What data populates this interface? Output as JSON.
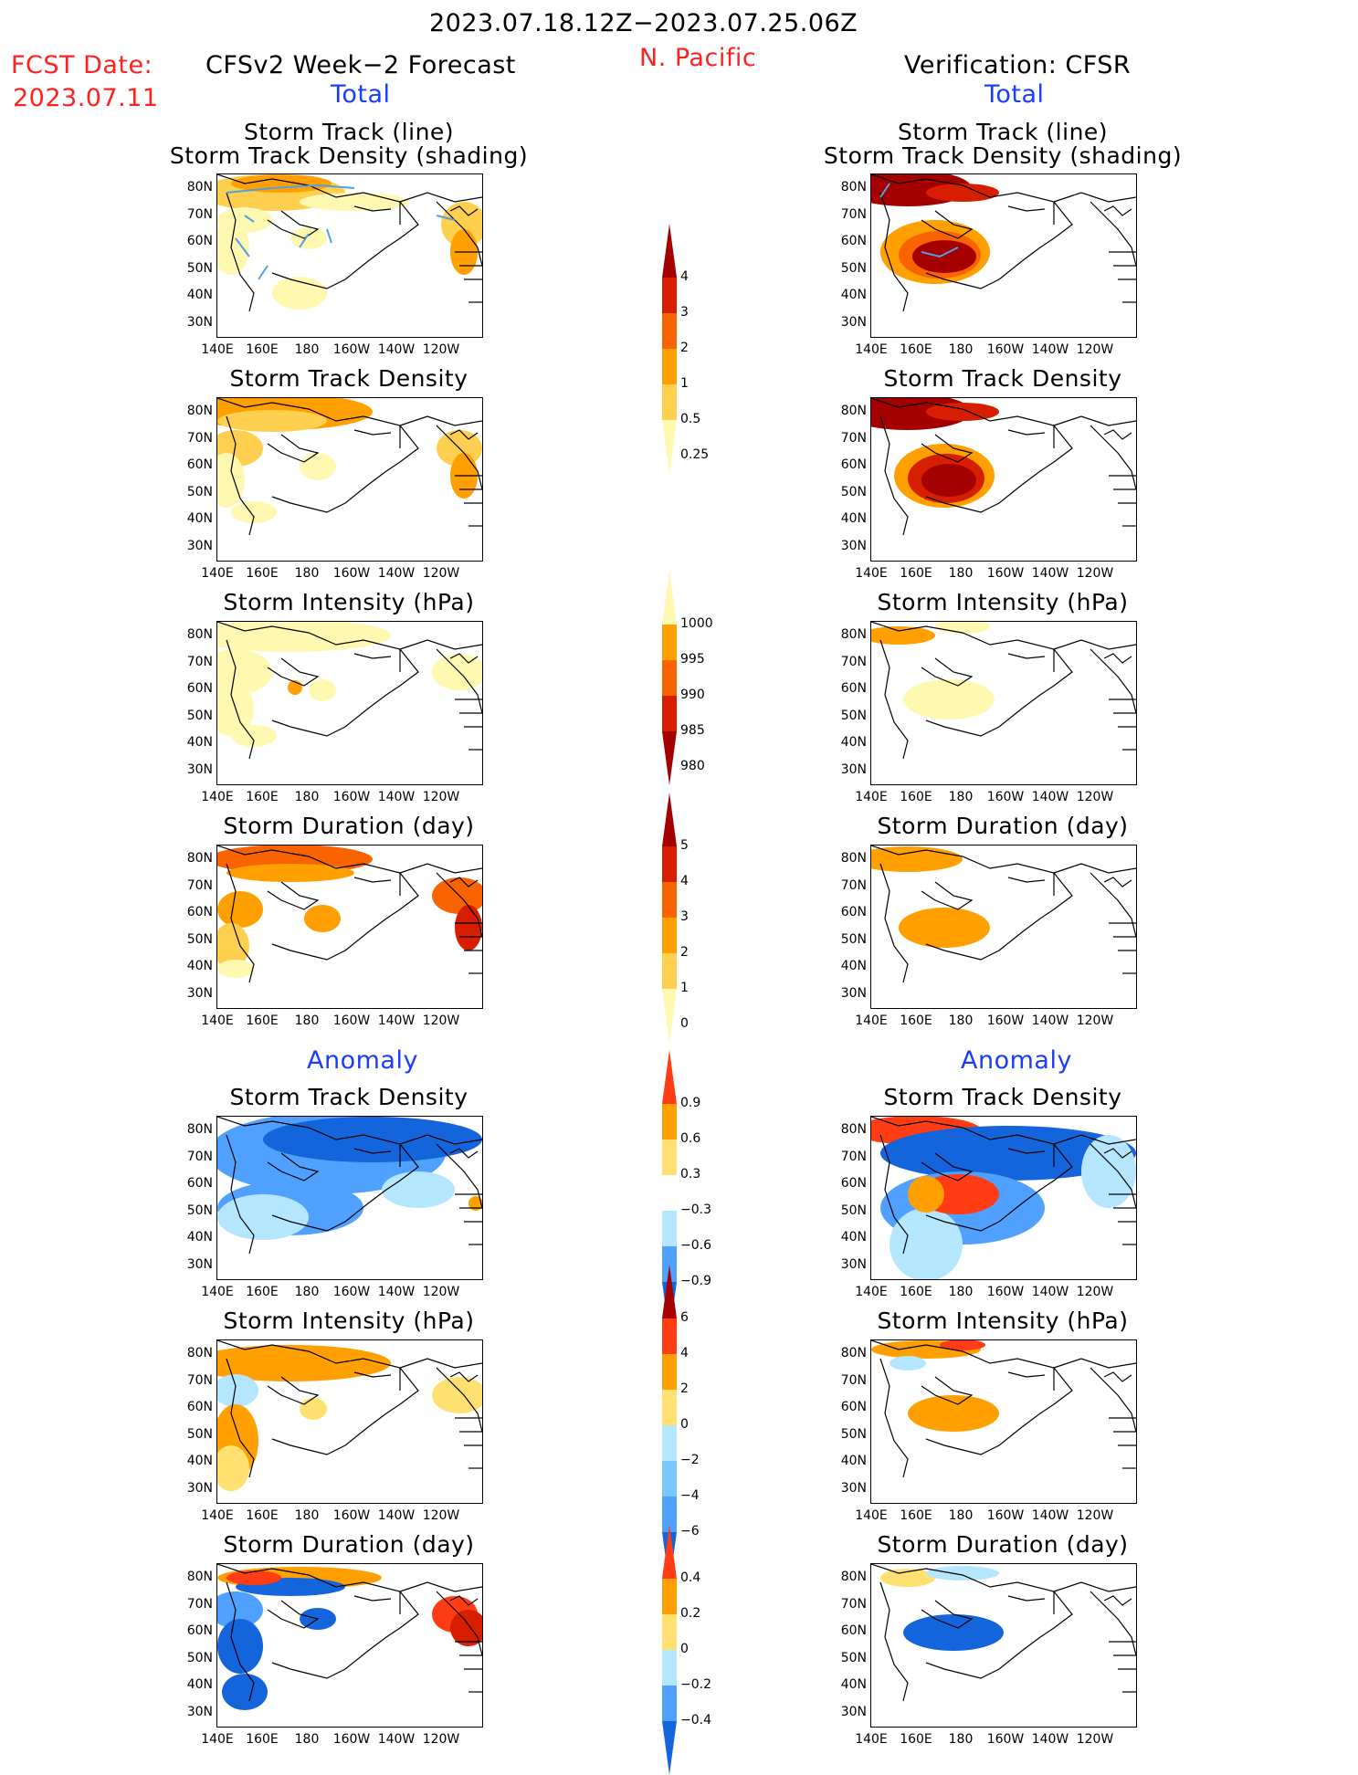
{
  "header": {
    "date_range": "2023.07.18.12Z−2023.07.25.06Z",
    "fcst_label": "FCST Date:",
    "fcst_date": "2023.07.11",
    "left_title": "CFSv2 Week−2 Forecast",
    "region": "N. Pacific",
    "right_title": "Verification: CFSR",
    "total_label": "Total",
    "anomaly_label": "Anomaly"
  },
  "panel_titles": {
    "track_line_1": "Storm Track (line)",
    "track_line_2": "Storm Track Density (shading)",
    "density": "Storm Track Density",
    "intensity": "Storm Intensity (hPa)",
    "duration": "Storm Duration (day)"
  },
  "axes": {
    "lat_labels": [
      "80N",
      "70N",
      "60N",
      "50N",
      "40N",
      "30N"
    ],
    "lon_labels": [
      "140E",
      "160E",
      "180",
      "160W",
      "140W",
      "120W"
    ]
  },
  "colorbars": {
    "density_total": {
      "labels": [
        "4",
        "3",
        "2",
        "1",
        "0.5",
        "0.25"
      ],
      "colors": [
        "#a50000",
        "#d81e00",
        "#fa6400",
        "#ffa000",
        "#ffd050",
        "#fff8b0"
      ]
    },
    "intensity_total": {
      "labels": [
        "1000",
        "995",
        "990",
        "985",
        "980"
      ],
      "colors": [
        "#fff8b0",
        "#ffa000",
        "#fa6400",
        "#d81e00",
        "#a50000"
      ]
    },
    "duration_total": {
      "labels": [
        "5",
        "4",
        "3",
        "2",
        "1",
        "0"
      ],
      "colors": [
        "#a50000",
        "#d81e00",
        "#fa6400",
        "#ffa000",
        "#ffd050",
        "#fff8b0"
      ]
    },
    "density_anom": {
      "labels": [
        "0.9",
        "0.6",
        "0.3",
        "−0.3",
        "−0.6",
        "−0.9"
      ],
      "colors": [
        "#ff3c14",
        "#ffa000",
        "#ffe070",
        "#ffffff",
        "#b4e6ff",
        "#50a0ff",
        "#1464dc"
      ]
    },
    "intensity_anom": {
      "labels": [
        "6",
        "4",
        "2",
        "0",
        "−2",
        "−4",
        "−6"
      ],
      "colors": [
        "#a50000",
        "#ff3c14",
        "#ffa000",
        "#ffe070",
        "#b4e6ff",
        "#78c8ff",
        "#50a0ff",
        "#1464dc"
      ]
    },
    "duration_anom": {
      "labels": [
        "0.4",
        "0.2",
        "0",
        "−0.2",
        "−0.4"
      ],
      "colors": [
        "#ff3c14",
        "#ffa000",
        "#ffe070",
        "#b4e6ff",
        "#50a0ff",
        "#1464dc"
      ]
    }
  },
  "colors": {
    "track_line": "#50a0e6",
    "title_red": "#ff2020",
    "title_blue": "#1a3cff"
  }
}
